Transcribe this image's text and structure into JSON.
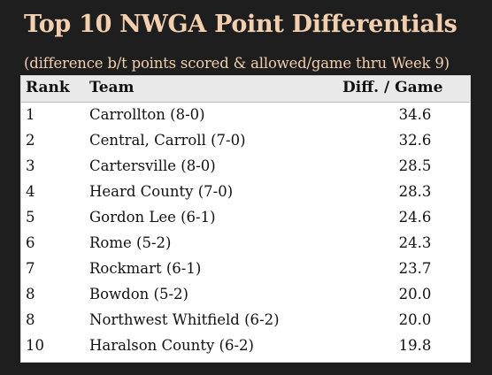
{
  "title": "Top 10 NWGA Point Differentials",
  "subtitle": "(difference b/t points scored & allowed/game thru Week 9)",
  "colors": {
    "background": "#1e1e1e",
    "title_text": "#f2cfae",
    "header_bg": "#e9e9e9",
    "table_bg": "#ffffff"
  },
  "chart_data": {
    "type": "table",
    "columns": [
      "Rank",
      "Team",
      "Diff. / Game"
    ],
    "rows": [
      {
        "rank": "1",
        "team": "Carrollton (8-0)",
        "diff": "34.6"
      },
      {
        "rank": "2",
        "team": "Central, Carroll (7-0)",
        "diff": "32.6"
      },
      {
        "rank": "3",
        "team": "Cartersville (8-0)",
        "diff": "28.5"
      },
      {
        "rank": "4",
        "team": "Heard County (7-0)",
        "diff": "28.3"
      },
      {
        "rank": "5",
        "team": "Gordon Lee (6-1)",
        "diff": "24.6"
      },
      {
        "rank": "6",
        "team": "Rome (5-2)",
        "diff": "24.3"
      },
      {
        "rank": "7",
        "team": "Rockmart (6-1)",
        "diff": "23.7"
      },
      {
        "rank": "8",
        "team": "Bowdon (5-2)",
        "diff": "20.0"
      },
      {
        "rank": "8",
        "team": "Northwest Whitfield (6-2)",
        "diff": "20.0"
      },
      {
        "rank": "10",
        "team": "Haralson County (6-2)",
        "diff": "19.8"
      }
    ]
  }
}
